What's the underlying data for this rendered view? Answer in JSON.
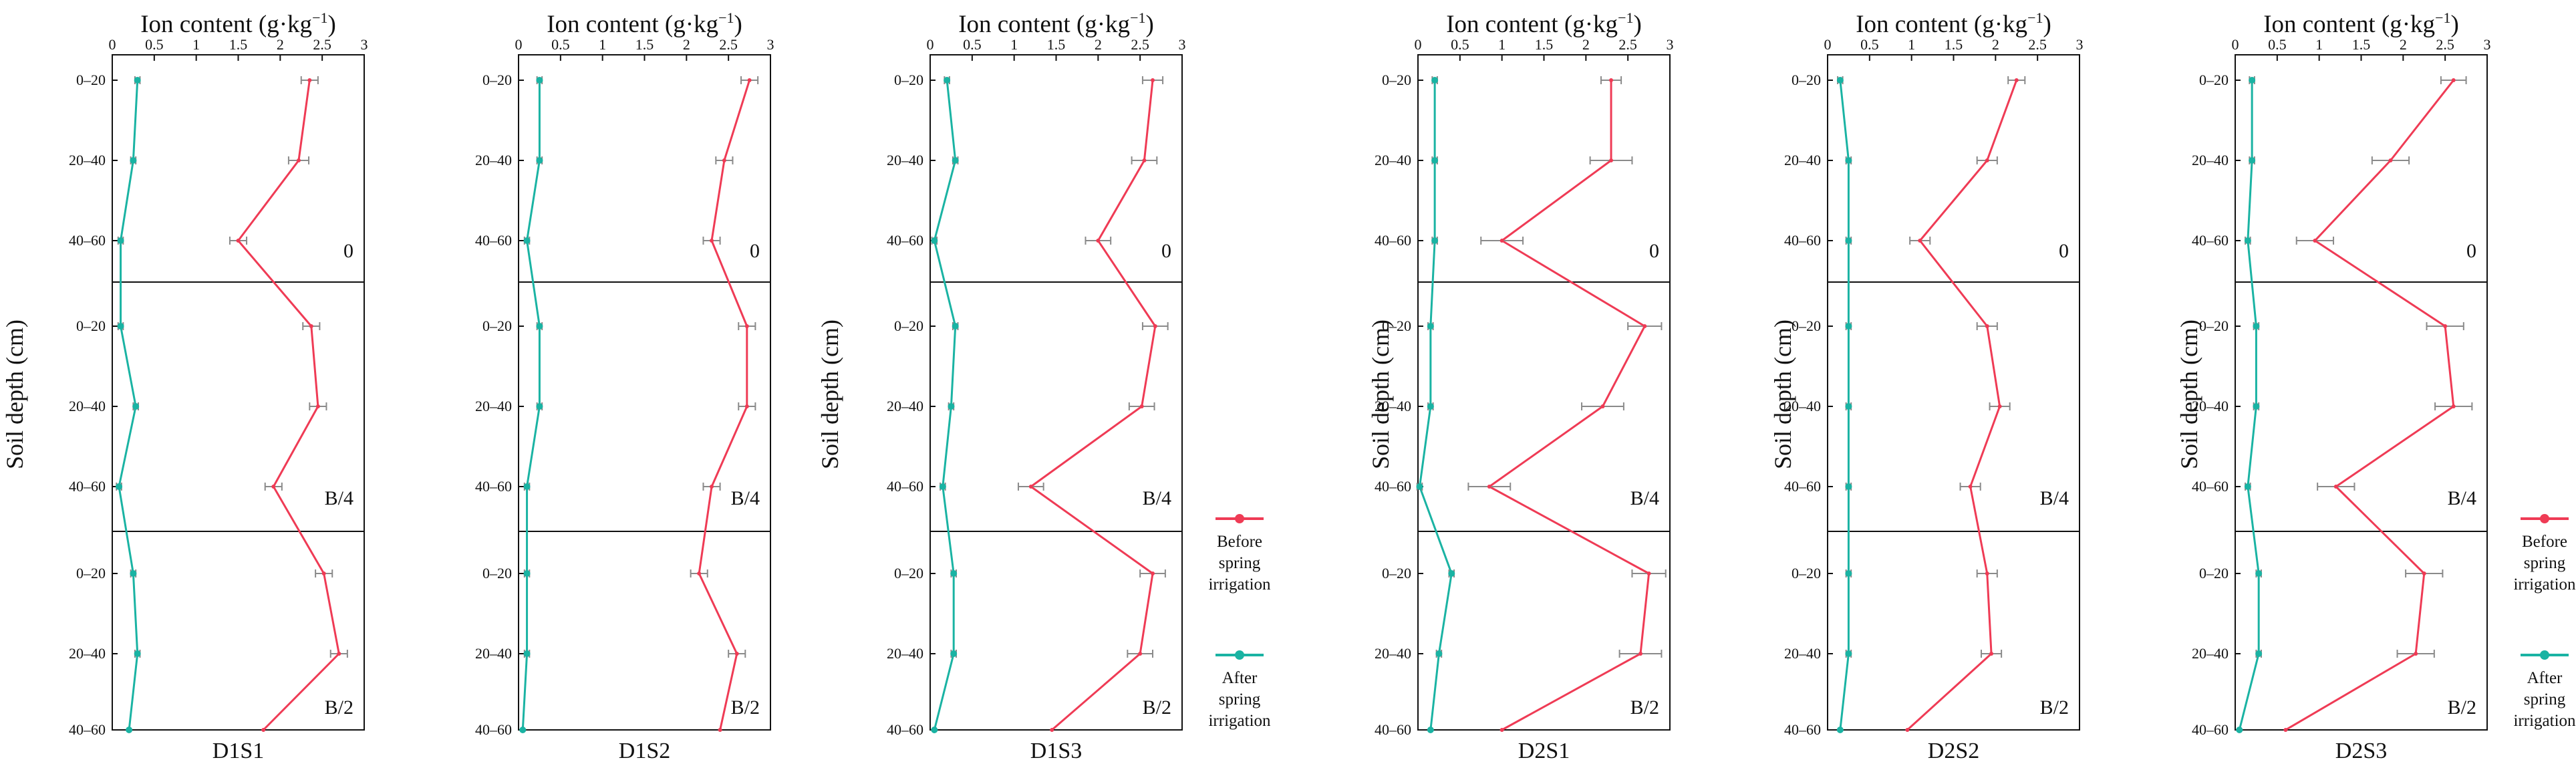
{
  "chart_data": {
    "type": "line",
    "x_label": "Ion content (g·kg⁻¹)",
    "x_label_text": "Ion content (g·kg",
    "x_label_exp": "−1",
    "x_label_close": ")",
    "y_label": "Soil depth (cm)",
    "xlim": [
      0,
      3
    ],
    "x_ticks": [
      "0",
      "0.5",
      "1",
      "1.5",
      "2",
      "2.5",
      "3"
    ],
    "depths": [
      "0–20",
      "20–40",
      "40–60"
    ],
    "blocks": [
      "0",
      "B/4",
      "B/2"
    ],
    "series_names": {
      "before": "Before spring irrigation",
      "after": "After spring irrigation"
    },
    "colors": {
      "before": "#ef3b55",
      "after": "#1ab3a3",
      "error": "#8a8a8a",
      "axis": "#111111",
      "divider": "#111111"
    },
    "legend": {
      "before": [
        "Before",
        "spring",
        "irrigation"
      ],
      "after": [
        "After",
        "spring",
        "irrigation"
      ]
    },
    "panels": [
      {
        "name": "D1S1",
        "before": [
          2.35,
          2.22,
          1.5,
          2.37,
          2.45,
          1.92,
          2.52,
          2.7,
          1.8
        ],
        "before_err": [
          0.1,
          0.12,
          0.1,
          0.1,
          0.1,
          0.1,
          0.1,
          0.1,
          0.1
        ],
        "after": [
          0.3,
          0.25,
          0.1,
          0.1,
          0.28,
          0.08,
          0.25,
          0.3,
          0.2
        ],
        "after_err": [
          0.03,
          0.03,
          0.03,
          0.03,
          0.03,
          0.03,
          0.03,
          0.03,
          0.03
        ]
      },
      {
        "name": "D1S2",
        "before": [
          2.75,
          2.45,
          2.3,
          2.72,
          2.72,
          2.3,
          2.15,
          2.6,
          2.4
        ],
        "before_err": [
          0.1,
          0.1,
          0.1,
          0.1,
          0.1,
          0.1,
          0.1,
          0.1,
          0.1
        ],
        "after": [
          0.25,
          0.25,
          0.1,
          0.25,
          0.25,
          0.1,
          0.1,
          0.1,
          0.05
        ],
        "after_err": [
          0.03,
          0.03,
          0.03,
          0.03,
          0.03,
          0.03,
          0.03,
          0.03,
          0.03
        ]
      },
      {
        "name": "D1S3",
        "before": [
          2.65,
          2.55,
          2.0,
          2.68,
          2.52,
          1.2,
          2.65,
          2.5,
          1.45
        ],
        "before_err": [
          0.12,
          0.15,
          0.15,
          0.15,
          0.15,
          0.15,
          0.15,
          0.15,
          0.15
        ],
        "after": [
          0.2,
          0.3,
          0.05,
          0.3,
          0.25,
          0.15,
          0.28,
          0.28,
          0.05
        ],
        "after_err": [
          0.03,
          0.03,
          0.03,
          0.03,
          0.03,
          0.03,
          0.03,
          0.03,
          0.03
        ]
      },
      {
        "name": "D2S1",
        "before": [
          2.3,
          2.3,
          1.0,
          2.7,
          2.2,
          0.85,
          2.75,
          2.65,
          1.0
        ],
        "before_err": [
          0.12,
          0.25,
          0.25,
          0.2,
          0.25,
          0.25,
          0.2,
          0.25,
          0.25
        ],
        "after": [
          0.2,
          0.2,
          0.2,
          0.15,
          0.15,
          0.02,
          0.4,
          0.25,
          0.15
        ],
        "after_err": [
          0.03,
          0.03,
          0.03,
          0.03,
          0.03,
          0.03,
          0.03,
          0.03,
          0.03
        ]
      },
      {
        "name": "D2S2",
        "before": [
          2.25,
          1.9,
          1.1,
          1.9,
          2.05,
          1.7,
          1.9,
          1.95,
          0.95
        ],
        "before_err": [
          0.1,
          0.12,
          0.12,
          0.12,
          0.12,
          0.12,
          0.12,
          0.12,
          0.12
        ],
        "after": [
          0.15,
          0.25,
          0.25,
          0.25,
          0.25,
          0.25,
          0.25,
          0.25,
          0.15
        ],
        "after_err": [
          0.03,
          0.03,
          0.03,
          0.03,
          0.03,
          0.03,
          0.03,
          0.03,
          0.03
        ]
      },
      {
        "name": "D2S3",
        "before": [
          2.6,
          1.85,
          0.95,
          2.5,
          2.6,
          1.2,
          2.25,
          2.15,
          0.6
        ],
        "before_err": [
          0.15,
          0.22,
          0.22,
          0.22,
          0.22,
          0.22,
          0.22,
          0.22,
          0.22
        ],
        "after": [
          0.2,
          0.2,
          0.15,
          0.25,
          0.25,
          0.15,
          0.28,
          0.28,
          0.05
        ],
        "after_err": [
          0.03,
          0.03,
          0.03,
          0.03,
          0.03,
          0.03,
          0.03,
          0.03,
          0.03
        ]
      }
    ]
  }
}
